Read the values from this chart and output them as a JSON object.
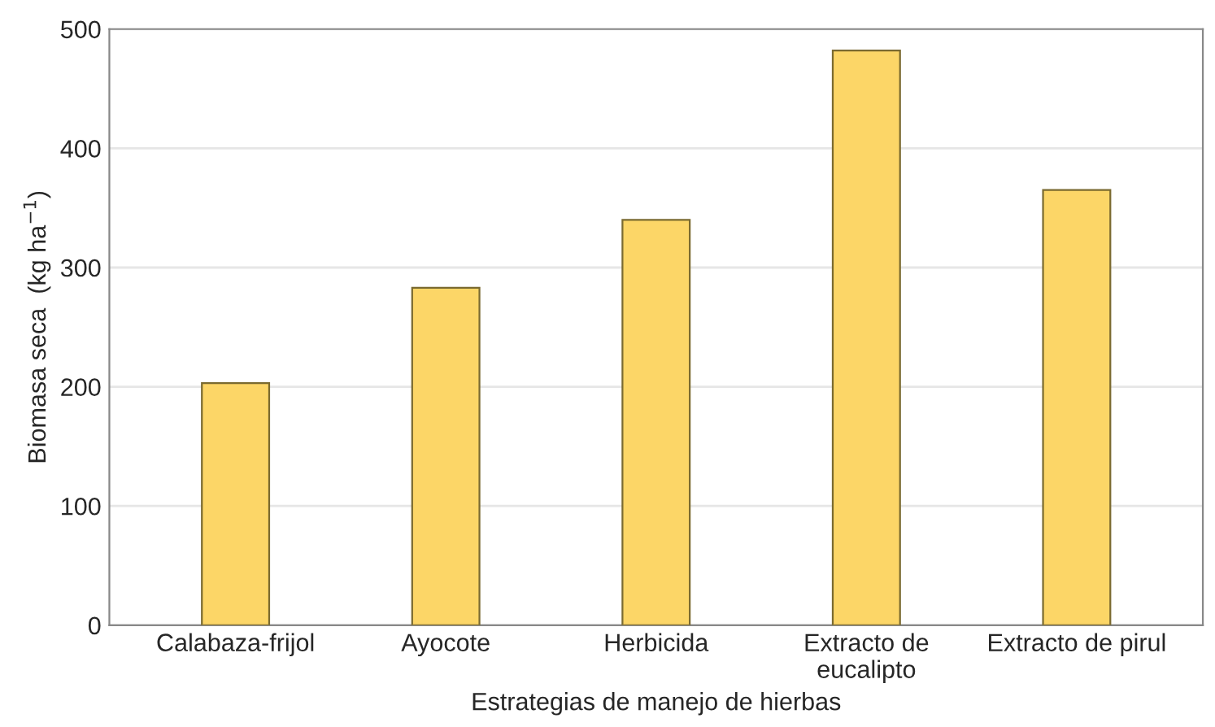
{
  "chart_data": {
    "type": "bar",
    "xlabel": "Estrategias de manejo de hierbas",
    "ylabel": "Biomasa seca  (kg ha$^{−1}$)",
    "categories": [
      "Calabaza-frijol",
      "Ayocote",
      "Herbicida",
      "Extracto de\neucalipto",
      "Extracto de pirul"
    ],
    "values": [
      203,
      283,
      340,
      482,
      365
    ],
    "color": "#fcd667",
    "ylim": [
      0,
      500
    ],
    "yticks": [
      0,
      100,
      200,
      300,
      400,
      500
    ],
    "grid": "y"
  }
}
